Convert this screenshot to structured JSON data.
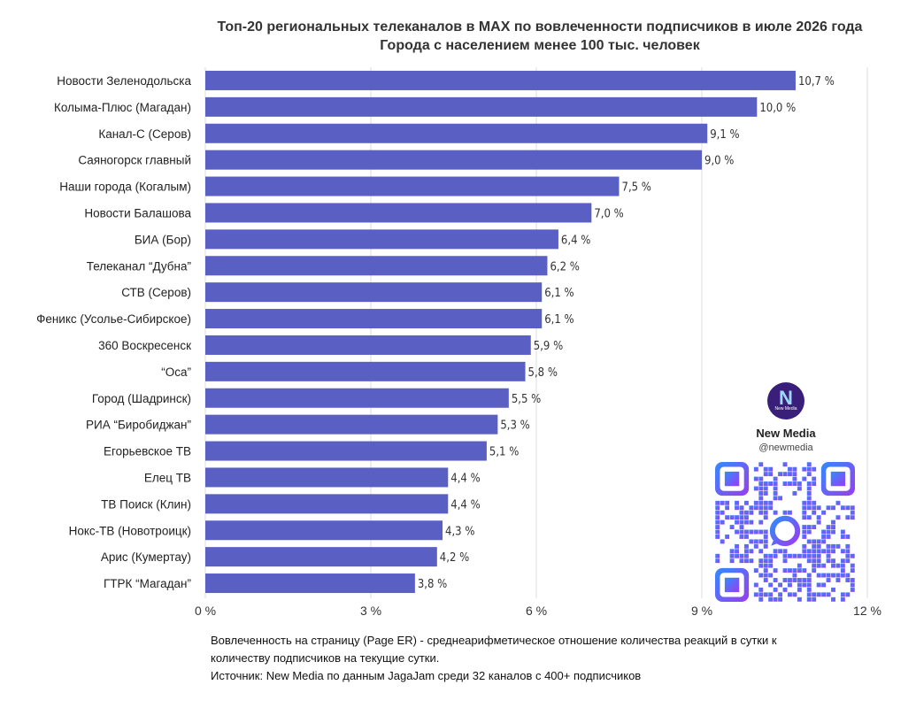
{
  "title": {
    "line1": "Топ-20 региональных телеканалов в MAX по вовлеченности подписчиков в июле 2026 года",
    "line2": "Города с населением менее 100 тыс. человек"
  },
  "chart_data": {
    "type": "bar",
    "orientation": "horizontal",
    "categories": [
      "Новости Зеленодольска",
      "Колыма-Плюс (Магадан)",
      "Канал-С (Серов)",
      "Саяногорск главный",
      "Наши города (Когалым)",
      "Новости Балашова",
      "БИА (Бор)",
      "Телеканал “Дубна”",
      "СТВ (Серов)",
      "Феникс (Усолье-Сибирское)",
      "360 Воскресенск",
      "“Оса”",
      "Город (Шадринск)",
      "РИА “Биробиджан”",
      "Егорьевское ТВ",
      "Елец ТВ",
      "ТВ Поиск (Клин)",
      "Нокс-ТВ (Новотроицк)",
      "Арис (Кумертау)",
      "ГТРК “Магадан”"
    ],
    "values": [
      10.7,
      10.0,
      9.1,
      9.0,
      7.5,
      7.0,
      6.4,
      6.2,
      6.1,
      6.1,
      5.9,
      5.8,
      5.5,
      5.3,
      5.1,
      4.4,
      4.4,
      4.3,
      4.2,
      3.8
    ],
    "value_labels": [
      "10,7 %",
      "10,0 %",
      "9,1 %",
      "9,0 %",
      "7,5 %",
      "7,0 %",
      "6,4 %",
      "6,2 %",
      "6,1 %",
      "6,1 %",
      "5,9 %",
      "5,8 %",
      "5,5 %",
      "5,3 %",
      "5,1 %",
      "4,4 %",
      "4,4 %",
      "4,3 %",
      "4,2 %",
      "3,8 %"
    ],
    "xlim": [
      0,
      12
    ],
    "xticks": [
      0,
      3,
      6,
      9,
      12
    ],
    "xtick_labels": [
      "0 %",
      "3 %",
      "6 %",
      "9 %",
      "12 %"
    ],
    "grid": "vertical",
    "bar_color": "#5a5fc4",
    "grid_color": "#dcdcdc"
  },
  "brand": {
    "logo_text": "N",
    "logo_subtext": "New Media",
    "name": "New Media",
    "handle": "@newmedia",
    "qr_gradient": [
      "#2f8cff",
      "#9b3cf0"
    ]
  },
  "footnote": {
    "line1": "Вовлеченность на страницу (Page ER) - среднеарифметическое отношение количества реакций в сутки к",
    "line2": "количеству подписчиков на текущие сутки.",
    "line3": "Источник: New Media по данным JagaJam среди 32 каналов с 400+ подписчиков"
  }
}
